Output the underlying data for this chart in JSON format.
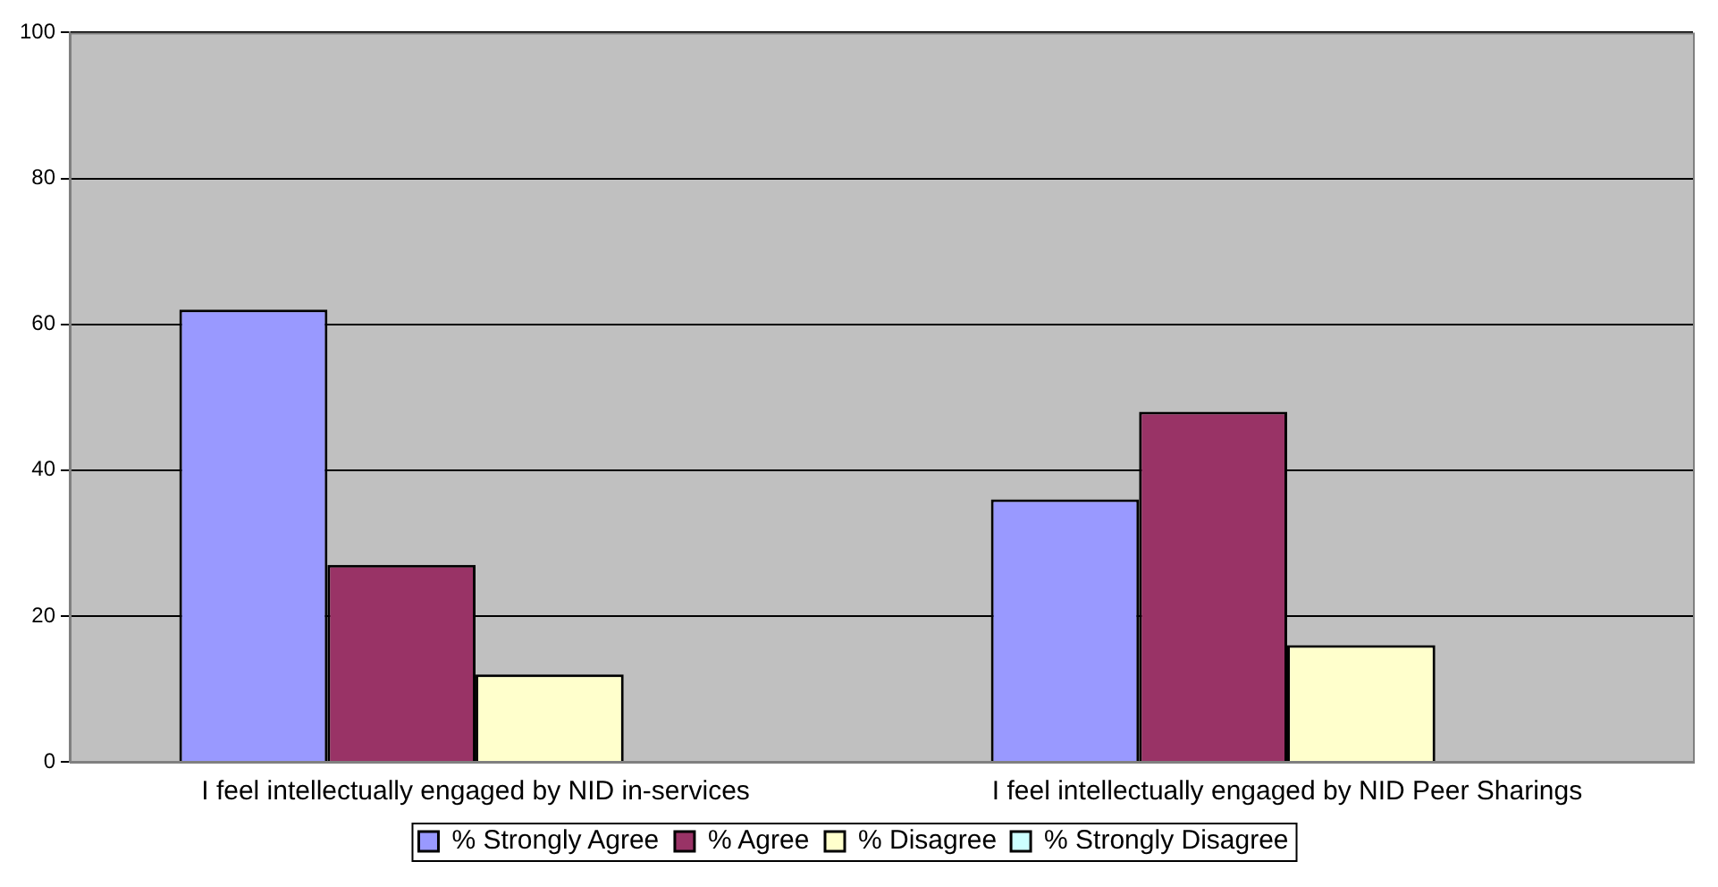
{
  "chart_data": {
    "type": "bar",
    "categories": [
      "I feel intellectually engaged by NID in-services",
      "I feel intellectually engaged by NID Peer Sharings"
    ],
    "series": [
      {
        "name": "% Strongly Agree",
        "color": "#9999ff",
        "values": [
          62,
          36
        ]
      },
      {
        "name": "% Agree",
        "color": "#993366",
        "values": [
          27,
          48
        ]
      },
      {
        "name": "% Disagree",
        "color": "#ffffcc",
        "values": [
          12,
          16
        ]
      },
      {
        "name": "% Strongly Disagree",
        "color": "#ccffff",
        "values": [
          0,
          0
        ]
      }
    ],
    "ylim": [
      0,
      100
    ],
    "yticks": [
      0,
      20,
      40,
      60,
      80,
      100
    ],
    "grid": "y",
    "legend": "bottom"
  }
}
